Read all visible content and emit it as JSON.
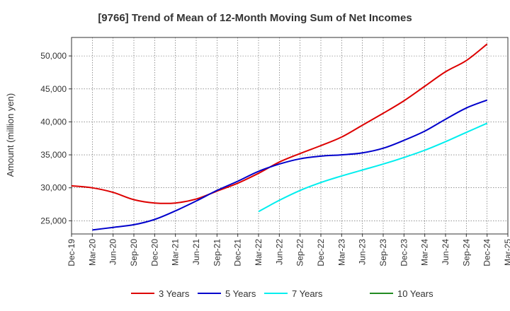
{
  "chart_data": {
    "type": "line",
    "title": "[9766]  Trend of Mean of 12-Month Moving Sum of Net Incomes",
    "xlabel": "",
    "ylabel": "Amount (million yen)",
    "ylim": [
      23000,
      52800
    ],
    "yticks": [
      25000,
      30000,
      35000,
      40000,
      45000,
      50000
    ],
    "ytick_labels": [
      "25,000",
      "30,000",
      "35,000",
      "40,000",
      "45,000",
      "50,000"
    ],
    "xticks": [
      "Dec-19",
      "Mar-20",
      "Jun-20",
      "Sep-20",
      "Dec-20",
      "Mar-21",
      "Jun-21",
      "Sep-21",
      "Dec-21",
      "Mar-22",
      "Jun-22",
      "Sep-22",
      "Dec-22",
      "Mar-23",
      "Jun-23",
      "Sep-23",
      "Dec-23",
      "Mar-24",
      "Jun-24",
      "Sep-24",
      "Dec-24",
      "Mar-25"
    ],
    "grid": true,
    "legend_position": "bottom",
    "series": [
      {
        "name": "3 Years",
        "color": "#dd0000",
        "values": [
          30300,
          30000,
          29300,
          28200,
          27700,
          27700,
          28300,
          29500,
          30700,
          32200,
          33900,
          35200,
          36400,
          37700,
          39500,
          41300,
          43200,
          45400,
          47600,
          49300,
          51800,
          null
        ]
      },
      {
        "name": "5 Years",
        "color": "#0000cc",
        "values": [
          null,
          23600,
          24000,
          24400,
          25200,
          26500,
          28000,
          29600,
          31000,
          32500,
          33600,
          34400,
          34800,
          35000,
          35300,
          36000,
          37200,
          38600,
          40400,
          42100,
          43300,
          null
        ]
      },
      {
        "name": "7 Years",
        "color": "#00eeee",
        "values": [
          null,
          null,
          null,
          null,
          null,
          null,
          null,
          null,
          null,
          26400,
          28100,
          29600,
          30800,
          31800,
          32700,
          33600,
          34600,
          35700,
          37000,
          38400,
          39800,
          null
        ]
      },
      {
        "name": "10 Years",
        "color": "#228b22",
        "values": [
          null,
          null,
          null,
          null,
          null,
          null,
          null,
          null,
          null,
          null,
          null,
          null,
          null,
          null,
          null,
          null,
          null,
          null,
          null,
          null,
          null,
          null
        ]
      }
    ]
  }
}
